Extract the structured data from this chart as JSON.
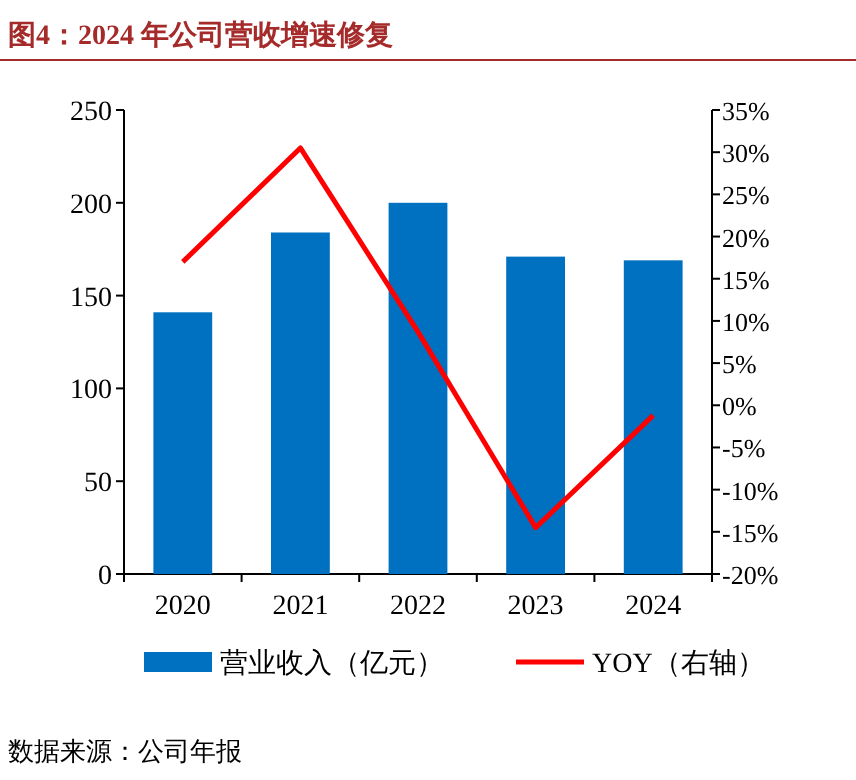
{
  "chart_data": {
    "type": "bar",
    "title": "图4：2024 年公司营收增速修复",
    "categories": [
      "2020",
      "2021",
      "2022",
      "2023",
      "2024"
    ],
    "series": [
      {
        "name": "营业收入（亿元）",
        "color": "#0070c0",
        "values": [
          141,
          184,
          200,
          171,
          169
        ]
      },
      {
        "name": "YOY（右轴）",
        "type": "line",
        "axis": "y2",
        "color": "#ff0000",
        "values": [
          17,
          30.5,
          8.7,
          -14.5,
          -1.2
        ]
      }
    ],
    "ylim": [
      0,
      250
    ],
    "yticks": [
      0,
      50,
      100,
      150,
      200,
      250
    ],
    "y2lim": [
      -20,
      35
    ],
    "y2ticks": [
      {
        "value": -20,
        "label": "-20%"
      },
      {
        "value": -15,
        "label": "-15%"
      },
      {
        "value": -10,
        "label": "-10%"
      },
      {
        "value": -5,
        "label": "-5%"
      },
      {
        "value": 0,
        "label": "0%"
      },
      {
        "value": 5,
        "label": "5%"
      },
      {
        "value": 10,
        "label": "10%"
      },
      {
        "value": 15,
        "label": "15%"
      },
      {
        "value": 20,
        "label": "20%"
      },
      {
        "value": 25,
        "label": "25%"
      },
      {
        "value": 30,
        "label": "30%"
      },
      {
        "value": 35,
        "label": "35%"
      }
    ],
    "grid": false,
    "legend": "bottom",
    "marker": "none",
    "line_style": "solid",
    "annotations": [
      "数据来源：公司年报"
    ]
  }
}
